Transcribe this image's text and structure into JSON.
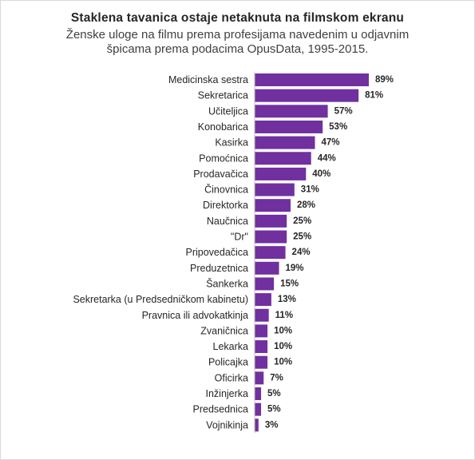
{
  "chart_data": {
    "type": "bar",
    "orientation": "horizontal",
    "title": "Staklena tavanica ostaje netaknuta na filmskom ekranu",
    "subtitle_lines": [
      "Ženske uloge na filmu prema profesijama navedenim u odjavnim",
      "špicama prema podacima OpusData, 1995-2015."
    ],
    "categories": [
      "Medicinska sestra",
      "Sekretarica",
      "Učiteljica",
      "Konobarica",
      "Kasirka",
      "Pomoćnica",
      "Prodavačica",
      "Činovnica",
      "Direktorka",
      "Naučnica",
      "\"Dr\"",
      "Pripovedačica",
      "Preduzetnica",
      "Šankerka",
      "Sekretarka (u Predsedničkom kabinetu)",
      "Pravnica ili advokatkinja",
      "Zvaničnica",
      "Lekarka",
      "Policajka",
      "Oficirka",
      "Inžinjerka",
      "Predsednica",
      "Vojnikinja"
    ],
    "values": [
      89,
      81,
      57,
      53,
      47,
      44,
      40,
      31,
      28,
      25,
      25,
      24,
      19,
      15,
      13,
      11,
      10,
      10,
      10,
      7,
      5,
      5,
      3
    ],
    "value_suffix": "%",
    "xlim": [
      0,
      100
    ],
    "bar_color": "#7030a0",
    "grid": false,
    "legend": "none"
  }
}
